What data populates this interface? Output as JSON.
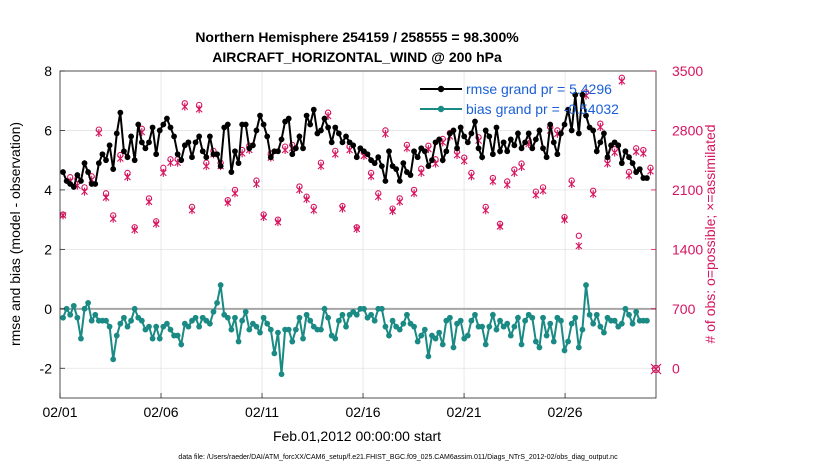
{
  "chart_data": {
    "type": "line",
    "title": "Northern Hemisphere 254159 / 258555 = 98.300%",
    "subtitle": "AIRCRAFT_HORIZONTAL_WIND @ 200 hPa",
    "xlabel": "Feb.01,2012 00:00:00 start",
    "ylabel_left": "rmse and bias (model - observation)",
    "ylabel_right": "# of obs: o=possible; ×=assimilated",
    "xlim": [
      0,
      29.5
    ],
    "ylim_left": [
      -3,
      8
    ],
    "ylim_right": [
      -350,
      3500
    ],
    "x_ticks": [
      0,
      5,
      10,
      15,
      20,
      25
    ],
    "x_tick_labels": [
      "02/01",
      "02/06",
      "02/11",
      "02/16",
      "02/21",
      "02/26"
    ],
    "y_ticks_left": [
      -2,
      0,
      2,
      4,
      6,
      8
    ],
    "y_ticks_right": [
      0,
      700,
      1400,
      2100,
      2800,
      3500
    ],
    "grid": true,
    "zero_line": 0,
    "legend": [
      {
        "name": "rmse grand pr = 5.4296",
        "color": "#000000"
      },
      {
        "name": "bias grand pr = -0.54032",
        "color": "#1a8a84"
      }
    ],
    "footnote": "data file: /Users/raeder/DAI/ATM_forcXX/CAM6_setup/f.e21.FHIST_BGC.f09_025.CAM6assim.011/Diags_NTrS_2012-02/obs_diag_output.nc",
    "colors": {
      "rmse": "#000000",
      "bias": "#1a8a84",
      "counts": "#d6145f",
      "zero": "#a6a6a6"
    },
    "series": [
      {
        "name": "rmse",
        "axis": "left",
        "values": [
          4.6,
          4.3,
          4.2,
          4.1,
          4.5,
          4.3,
          4.9,
          4.6,
          4.2,
          4.2,
          4.9,
          5.2,
          5.0,
          5.5,
          4.7,
          5.9,
          6.6,
          5.3,
          5.1,
          5.8,
          5.0,
          6.2,
          5.6,
          5.4,
          5.6,
          6.1,
          5.2,
          6.0,
          6.2,
          6.4,
          6.1,
          5.8,
          5.2,
          5.0,
          5.5,
          5.6,
          5.1,
          5.6,
          5.8,
          5.3,
          5.1,
          5.8,
          5.2,
          5.2,
          4.8,
          6.1,
          6.2,
          4.6,
          5.3,
          4.9,
          6.2,
          6.2,
          5.4,
          5.5,
          6.0,
          6.5,
          6.2,
          5.8,
          5.1,
          5.3,
          5.3,
          5.7,
          6.3,
          6.4,
          5.2,
          5.4,
          5.8,
          5.4,
          6.5,
          6.2,
          6.7,
          5.9,
          6.0,
          6.4,
          6.1,
          5.6,
          6.1,
          5.9,
          5.6,
          5.8,
          5.6,
          5.5,
          5.1,
          5.4,
          5.3,
          5.2,
          5.0,
          4.9,
          5.1,
          4.8,
          4.3,
          5.3,
          4.8,
          4.7,
          4.3,
          4.9,
          4.6,
          4.5,
          5.3,
          5.1,
          5.4,
          5.3,
          4.8,
          5.0,
          5.6,
          5.7,
          5.0,
          5.3,
          5.9,
          6.0,
          5.4,
          6.1,
          5.8,
          5.6,
          5.9,
          6.3,
          5.4,
          5.1,
          6.0,
          5.8,
          5.2,
          6.1,
          5.3,
          5.6,
          5.3,
          5.7,
          5.5,
          5.9,
          5.4,
          5.6,
          5.9,
          5.4,
          5.7,
          6.0,
          5.4,
          5.1,
          6.2,
          5.6,
          5.2,
          5.9,
          6.2,
          6.7,
          6.0,
          7.2,
          5.9,
          7.2,
          6.5,
          6.1,
          6.0,
          5.3,
          5.6,
          5.9,
          5.1,
          5.5,
          5.6,
          5.5,
          4.9,
          5.3,
          5.1,
          4.9,
          4.6,
          4.7,
          4.4,
          4.4
        ]
      },
      {
        "name": "bias",
        "axis": "left",
        "values": [
          -0.3,
          0.0,
          -0.2,
          0.1,
          -0.3,
          -1.0,
          0.0,
          0.2,
          -0.4,
          -0.2,
          -0.4,
          -0.4,
          -0.4,
          -0.6,
          -1.7,
          -0.9,
          -0.5,
          -0.3,
          -0.6,
          -0.4,
          0.0,
          -0.3,
          -0.4,
          -0.7,
          -0.6,
          -1.0,
          -0.6,
          -1.0,
          -0.6,
          -0.5,
          -0.7,
          -0.9,
          -0.9,
          -1.2,
          -0.5,
          -0.6,
          -0.4,
          -0.3,
          -0.6,
          -0.3,
          -0.4,
          -0.5,
          -0.1,
          0.2,
          0.8,
          -0.2,
          -0.3,
          -0.7,
          -0.3,
          -1.1,
          -0.4,
          -0.1,
          -0.7,
          -0.5,
          -0.6,
          -0.8,
          -0.3,
          -0.5,
          -0.7,
          -1.5,
          -0.8,
          -2.2,
          -0.7,
          -0.7,
          -1.1,
          -0.7,
          -0.3,
          -1.0,
          -0.2,
          -0.4,
          -0.6,
          -0.7,
          -0.7,
          0.0,
          -0.3,
          -0.9,
          -1.0,
          -0.4,
          -0.2,
          -0.6,
          -0.2,
          -0.1,
          -0.2,
          0.0,
          0.0,
          -0.3,
          -0.2,
          -0.4,
          0.0,
          0.0,
          -0.6,
          -0.9,
          -0.4,
          -0.6,
          -0.7,
          -0.5,
          -0.2,
          -0.5,
          -0.6,
          -1.1,
          -0.9,
          -0.7,
          -1.6,
          -0.9,
          -1.0,
          -0.8,
          -1.2,
          -0.4,
          -0.3,
          -1.3,
          -0.5,
          -0.4,
          -1.0,
          -0.9,
          -0.4,
          -0.2,
          -0.6,
          -0.6,
          -1.2,
          -0.6,
          -0.2,
          -0.7,
          -0.4,
          -0.6,
          -0.5,
          -0.9,
          -0.6,
          -0.3,
          -1.2,
          -0.4,
          -0.2,
          -0.3,
          -1.1,
          -1.3,
          -0.3,
          -0.9,
          -0.5,
          -1.1,
          -0.3,
          -0.4,
          -1.4,
          -1.1,
          -0.5,
          -0.3,
          -1.3,
          -0.7,
          0.8,
          -0.2,
          -0.5,
          -0.2,
          -0.6,
          -0.8,
          -0.3,
          -0.4,
          -0.4,
          -0.6,
          -0.5,
          0.0,
          -0.2,
          -0.5,
          -0.1,
          -0.4,
          -0.4,
          -0.4
        ]
      },
      {
        "name": "possible",
        "axis": "right",
        "marker": "o",
        "values": [
          1810,
          2950,
          2250,
          2340,
          2230,
          1850,
          2130,
          2520,
          2260,
          2370,
          2810,
          1910,
          2060,
          2840,
          1800,
          2120,
          2510,
          2620,
          2300,
          2180,
          1660,
          2120,
          2820,
          2510,
          2000,
          2880,
          1730,
          2920,
          2360,
          2330,
          2460,
          2820,
          2460,
          2330,
          3120,
          2700,
          1900,
          2400,
          3100,
          2650,
          2420,
          2030,
          2560,
          2350,
          2420,
          2830,
          1980,
          2390,
          2100,
          1920,
          2570,
          1710,
          2620,
          1710,
          2210,
          2500,
          1810,
          2840,
          2530,
          2180,
          1750,
          2430,
          2610,
          1920,
          2630,
          2980,
          2140,
          2860,
          2020,
          2530,
          1900,
          2210,
          2420,
          1790,
          3010,
          2250,
          2560,
          2490,
          1910,
          2250,
          2610,
          2110,
          1660,
          2060,
          2540,
          1610,
          2300,
          2500,
          2060,
          2410,
          2800,
          2500,
          1880,
          2700,
          2000,
          1400,
          2630,
          2750,
          2100,
          2420,
          2350,
          2180,
          2620,
          1820,
          2460,
          2110,
          2700,
          2420,
          2770,
          2320,
          2550,
          2150,
          2480,
          2850,
          2300,
          2880,
          2720,
          2140,
          1900,
          2700,
          2240,
          2540,
          1700,
          2360,
          2200,
          2750,
          2340,
          2740,
          2410,
          1910,
          2680,
          2330,
          2080,
          2900,
          2130,
          1920,
          2840,
          2030,
          2800,
          2500,
          1780,
          2580,
          2210,
          1950,
          1560,
          2330,
          3250,
          2780,
          2090,
          1930,
          2880,
          2550,
          2450,
          1680,
          2580,
          2220,
          3420,
          3330,
          2310,
          1730,
          2590,
          2570,
          2570,
          2550,
          2360,
          2280
        ]
      },
      {
        "name": "assimilated",
        "axis": "right",
        "marker": "x",
        "values": [
          1800,
          2900,
          2200,
          2300,
          2150,
          1790,
          2080,
          2470,
          2220,
          2320,
          2770,
          1870,
          2010,
          2790,
          1760,
          2080,
          2470,
          2570,
          2250,
          2130,
          1630,
          2080,
          2780,
          2470,
          1960,
          2840,
          1700,
          2880,
          2300,
          2300,
          2420,
          2780,
          2420,
          2280,
          3080,
          2660,
          1860,
          2350,
          3050,
          2600,
          2380,
          2000,
          2520,
          2300,
          2380,
          2790,
          1950,
          2350,
          2060,
          1880,
          2530,
          1680,
          2570,
          1680,
          2170,
          2460,
          1780,
          2800,
          2480,
          2130,
          1720,
          2390,
          2570,
          1880,
          2590,
          2940,
          2100,
          2820,
          1990,
          2490,
          1860,
          2170,
          2380,
          1760,
          2970,
          2210,
          2520,
          2450,
          1880,
          2210,
          2570,
          2080,
          1640,
          2020,
          2500,
          1580,
          2260,
          2460,
          2020,
          2360,
          2760,
          2450,
          1850,
          2660,
          1960,
          1380,
          2590,
          2710,
          2060,
          2380,
          2300,
          2140,
          2580,
          1790,
          2410,
          2070,
          2660,
          2380,
          2730,
          2280,
          2510,
          2110,
          2440,
          2810,
          2260,
          2840,
          2680,
          2100,
          1860,
          2660,
          2200,
          2500,
          1670,
          2320,
          2160,
          2710,
          2300,
          2700,
          2370,
          1880,
          2640,
          2290,
          2040,
          2860,
          2090,
          1890,
          2800,
          2000,
          2760,
          2460,
          1750,
          2540,
          2170,
          1920,
          1440,
          2290,
          3210,
          2740,
          2050,
          1900,
          2840,
          2510,
          2410,
          1650,
          2540,
          2180,
          3380,
          3290,
          2270,
          1700,
          2550,
          2530,
          2530,
          2510,
          2320,
          2240
        ]
      }
    ]
  }
}
